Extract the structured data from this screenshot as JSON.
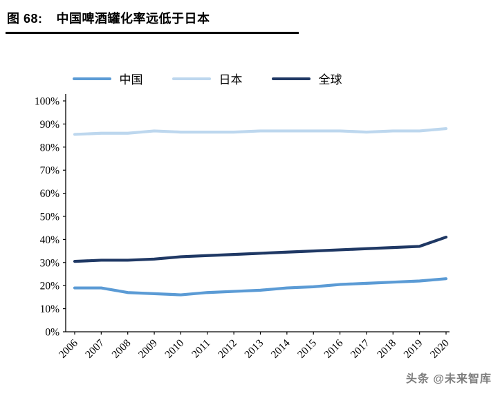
{
  "figure": {
    "label": "图 68:",
    "title": "中国啤酒罐化率远低于日本"
  },
  "watermark": "头条 @未来智库",
  "chart_data": {
    "type": "line",
    "title": "中国啤酒罐化率远低于日本",
    "x": [
      "2006",
      "2007",
      "2008",
      "2009",
      "2010",
      "2011",
      "2012",
      "2013",
      "2014",
      "2015",
      "2016",
      "2017",
      "2018",
      "2019",
      "2020"
    ],
    "series": [
      {
        "name": "中国",
        "color": "#5B9BD5",
        "values": [
          19,
          19,
          17,
          16.5,
          16,
          17,
          17.5,
          18,
          19,
          19.5,
          20.5,
          21,
          21.5,
          22,
          23
        ]
      },
      {
        "name": "日本",
        "color": "#BDD7EE",
        "values": [
          85.5,
          86,
          86,
          87,
          86.5,
          86.5,
          86.5,
          87,
          87,
          87,
          87,
          86.5,
          87,
          87,
          88
        ]
      },
      {
        "name": "全球",
        "color": "#1F3864",
        "values": [
          30.5,
          31,
          31,
          31.5,
          32.5,
          33,
          33.5,
          34,
          34.5,
          35,
          35.5,
          36,
          36.5,
          37,
          41
        ]
      }
    ],
    "ylim": [
      0,
      100
    ],
    "ytick_step": 10,
    "y_tick_labels": [
      "0%",
      "10%",
      "20%",
      "30%",
      "40%",
      "50%",
      "60%",
      "70%",
      "80%",
      "90%",
      "100%"
    ],
    "xlabel": "",
    "ylabel": "",
    "legend_position": "top",
    "grid": false,
    "axis_color": "#000000"
  }
}
